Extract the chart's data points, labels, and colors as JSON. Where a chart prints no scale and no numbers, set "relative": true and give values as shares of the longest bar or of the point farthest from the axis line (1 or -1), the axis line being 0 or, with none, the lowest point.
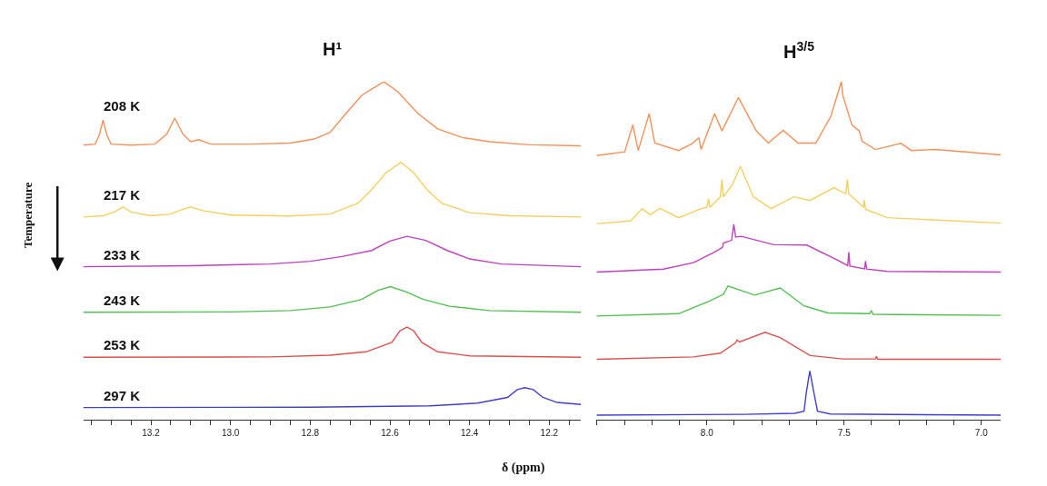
{
  "chart_data": [
    {
      "type": "line",
      "relative": true,
      "title": "H¹",
      "xlabel": "δ (ppm)",
      "annotations": [
        "Temperature"
      ],
      "xlim": [
        13.37,
        12.12
      ],
      "xticks": [
        {
          "value": 13.35,
          "label": null
        },
        {
          "value": 13.3,
          "label": null
        },
        {
          "value": 13.25,
          "label": null
        },
        {
          "value": 13.2,
          "label": "13.2"
        },
        {
          "value": 13.15,
          "label": null
        },
        {
          "value": 13.1,
          "label": null
        },
        {
          "value": 13.05,
          "label": null
        },
        {
          "value": 13.0,
          "label": "13.0"
        },
        {
          "value": 12.95,
          "label": null
        },
        {
          "value": 12.9,
          "label": null
        },
        {
          "value": 12.85,
          "label": null
        },
        {
          "value": 12.8,
          "label": "12.8"
        },
        {
          "value": 12.75,
          "label": null
        },
        {
          "value": 12.7,
          "label": null
        },
        {
          "value": 12.65,
          "label": null
        },
        {
          "value": 12.6,
          "label": "12.6"
        },
        {
          "value": 12.55,
          "label": null
        },
        {
          "value": 12.5,
          "label": null
        },
        {
          "value": 12.45,
          "label": null
        },
        {
          "value": 12.4,
          "label": "12.4"
        },
        {
          "value": 12.35,
          "label": null
        },
        {
          "value": 12.3,
          "label": null
        },
        {
          "value": 12.25,
          "label": null
        },
        {
          "value": 12.2,
          "label": "12.2"
        },
        {
          "value": 12.15,
          "label": null
        }
      ],
      "series": [
        {
          "name": "208 K",
          "color": "#f4905a",
          "x": [
            13.37,
            13.34,
            13.33,
            13.32,
            13.31,
            13.3,
            13.25,
            13.19,
            13.16,
            13.14,
            13.12,
            13.1,
            13.08,
            13.05,
            12.95,
            12.85,
            12.79,
            12.75,
            12.71,
            12.67,
            12.615,
            12.58,
            12.53,
            12.48,
            12.42,
            12.35,
            12.25,
            12.12
          ],
          "values": [
            0.812,
            0.815,
            0.84,
            0.886,
            0.84,
            0.815,
            0.812,
            0.815,
            0.845,
            0.892,
            0.845,
            0.822,
            0.828,
            0.815,
            0.815,
            0.818,
            0.83,
            0.85,
            0.906,
            0.96,
            1.0,
            0.97,
            0.906,
            0.86,
            0.835,
            0.822,
            0.813,
            0.81
          ]
        },
        {
          "name": "217 K",
          "color": "#f5d060",
          "x": [
            13.37,
            13.32,
            13.29,
            13.27,
            13.25,
            13.2,
            13.15,
            13.12,
            13.1,
            13.07,
            13.0,
            12.85,
            12.75,
            12.68,
            12.646,
            12.61,
            12.572,
            12.54,
            12.507,
            12.47,
            12.4,
            12.3,
            12.12
          ],
          "values": [
            0.599,
            0.603,
            0.615,
            0.629,
            0.614,
            0.603,
            0.608,
            0.622,
            0.629,
            0.618,
            0.605,
            0.602,
            0.608,
            0.64,
            0.68,
            0.73,
            0.761,
            0.73,
            0.68,
            0.64,
            0.612,
            0.603,
            0.599
          ]
        },
        {
          "name": "233 K",
          "color": "#c040c0",
          "x": [
            13.37,
            13.1,
            12.9,
            12.8,
            12.72,
            12.646,
            12.6,
            12.557,
            12.51,
            12.456,
            12.4,
            12.32,
            12.12
          ],
          "values": [
            0.452,
            0.455,
            0.46,
            0.468,
            0.482,
            0.5,
            0.528,
            0.542,
            0.53,
            0.5,
            0.475,
            0.46,
            0.452
          ]
        },
        {
          "name": "243 K",
          "color": "#50c050",
          "x": [
            13.37,
            13.0,
            12.85,
            12.75,
            12.671,
            12.63,
            12.599,
            12.56,
            12.516,
            12.45,
            12.35,
            12.12
          ],
          "values": [
            0.317,
            0.318,
            0.322,
            0.333,
            0.355,
            0.382,
            0.393,
            0.378,
            0.355,
            0.335,
            0.322,
            0.317
          ]
        },
        {
          "name": "253 K",
          "color": "#e05050",
          "x": [
            13.37,
            12.9,
            12.75,
            12.66,
            12.595,
            12.575,
            12.557,
            12.54,
            12.52,
            12.48,
            12.4,
            12.12
          ],
          "values": [
            0.184,
            0.185,
            0.19,
            0.2,
            0.228,
            0.262,
            0.273,
            0.262,
            0.228,
            0.2,
            0.188,
            0.184
          ]
        },
        {
          "name": "297 K",
          "color": "#4040d0",
          "x": [
            13.37,
            12.8,
            12.5,
            12.38,
            12.305,
            12.28,
            12.261,
            12.24,
            12.216,
            12.18,
            12.12
          ],
          "values": [
            0.035,
            0.036,
            0.04,
            0.048,
            0.065,
            0.088,
            0.094,
            0.088,
            0.065,
            0.05,
            0.044
          ]
        }
      ]
    },
    {
      "type": "line",
      "relative": true,
      "title": "H$^{3/5}$",
      "xlim": [
        8.402,
        6.929
      ],
      "xticks": [
        {
          "value": 8.4,
          "label": null
        },
        {
          "value": 8.3,
          "label": null
        },
        {
          "value": 8.2,
          "label": null
        },
        {
          "value": 8.1,
          "label": null
        },
        {
          "value": 8.0,
          "label": "8.0"
        },
        {
          "value": 7.9,
          "label": null
        },
        {
          "value": 7.8,
          "label": null
        },
        {
          "value": 7.7,
          "label": null
        },
        {
          "value": 7.6,
          "label": null
        },
        {
          "value": 7.5,
          "label": "7.5"
        },
        {
          "value": 7.4,
          "label": null
        },
        {
          "value": 7.3,
          "label": null
        },
        {
          "value": 7.2,
          "label": null
        },
        {
          "value": 7.1,
          "label": null
        },
        {
          "value": 7.0,
          "label": "7.0"
        }
      ],
      "series": [
        {
          "color": "#f4905a",
          "x": [
            8.402,
            8.299,
            8.27,
            8.25,
            8.21,
            8.19,
            8.103,
            8.054,
            8.029,
            8.021,
            7.972,
            7.945,
            7.885,
            7.82,
            7.776,
            7.722,
            7.668,
            7.603,
            7.548,
            7.51,
            7.505,
            7.472,
            7.445,
            7.434,
            7.386,
            7.293,
            7.255,
            7.168,
            6.929
          ],
          "values": [
            0.781,
            0.792,
            0.872,
            0.796,
            0.905,
            0.818,
            0.796,
            0.816,
            0.834,
            0.799,
            0.905,
            0.854,
            0.953,
            0.854,
            0.818,
            0.856,
            0.818,
            0.818,
            0.898,
            1.0,
            0.96,
            0.872,
            0.854,
            0.823,
            0.799,
            0.817,
            0.796,
            0.799,
            0.783
          ]
        },
        {
          "color": "#f5d060",
          "x": [
            8.402,
            8.277,
            8.236,
            8.207,
            8.171,
            8.103,
            8.027,
            8.0,
            7.994,
            7.989,
            7.951,
            7.945,
            7.94,
            7.907,
            7.878,
            7.831,
            7.766,
            7.684,
            7.624,
            7.537,
            7.494,
            7.488,
            7.483,
            7.429,
            7.427,
            7.422,
            7.342,
            6.929
          ],
          "values": [
            0.579,
            0.588,
            0.624,
            0.606,
            0.625,
            0.597,
            0.622,
            0.628,
            0.652,
            0.628,
            0.659,
            0.71,
            0.659,
            0.695,
            0.749,
            0.659,
            0.624,
            0.659,
            0.648,
            0.686,
            0.668,
            0.71,
            0.668,
            0.628,
            0.65,
            0.622,
            0.597,
            0.581
          ]
        },
        {
          "color": "#c040c0",
          "x": [
            8.402,
            8.158,
            8.049,
            7.973,
            7.943,
            7.94,
            7.91,
            7.902,
            7.895,
            7.875,
            7.756,
            7.636,
            7.527,
            7.487,
            7.483,
            7.479,
            7.425,
            7.422,
            7.418,
            7.342,
            6.929
          ],
          "values": [
            0.436,
            0.445,
            0.464,
            0.495,
            0.509,
            0.522,
            0.53,
            0.577,
            0.54,
            0.542,
            0.517,
            0.516,
            0.473,
            0.455,
            0.495,
            0.454,
            0.446,
            0.469,
            0.445,
            0.438,
            0.436
          ]
        },
        {
          "color": "#50c050",
          "x": [
            8.402,
            8.103,
            7.994,
            7.94,
            7.923,
            7.826,
            7.733,
            7.646,
            7.559,
            7.407,
            7.401,
            7.394,
            6.929
          ],
          "values": [
            0.306,
            0.313,
            0.349,
            0.37,
            0.395,
            0.368,
            0.389,
            0.336,
            0.315,
            0.313,
            0.322,
            0.311,
            0.308
          ]
        },
        {
          "color": "#e05050",
          "x": [
            8.402,
            8.049,
            7.951,
            7.896,
            7.89,
            7.881,
            7.788,
            7.733,
            7.624,
            7.505,
            7.386,
            7.382,
            7.378,
            6.929
          ],
          "values": [
            0.178,
            0.185,
            0.196,
            0.226,
            0.235,
            0.229,
            0.258,
            0.242,
            0.189,
            0.179,
            0.179,
            0.187,
            0.178,
            0.178
          ]
        },
        {
          "color": "#4040d0",
          "x": [
            8.402,
            7.864,
            7.68,
            7.646,
            7.638,
            7.625,
            7.61,
            7.597,
            7.55,
            6.929
          ],
          "values": [
            0.0124,
            0.015,
            0.018,
            0.024,
            0.078,
            0.1435,
            0.078,
            0.024,
            0.016,
            0.0124
          ]
        }
      ]
    }
  ]
}
